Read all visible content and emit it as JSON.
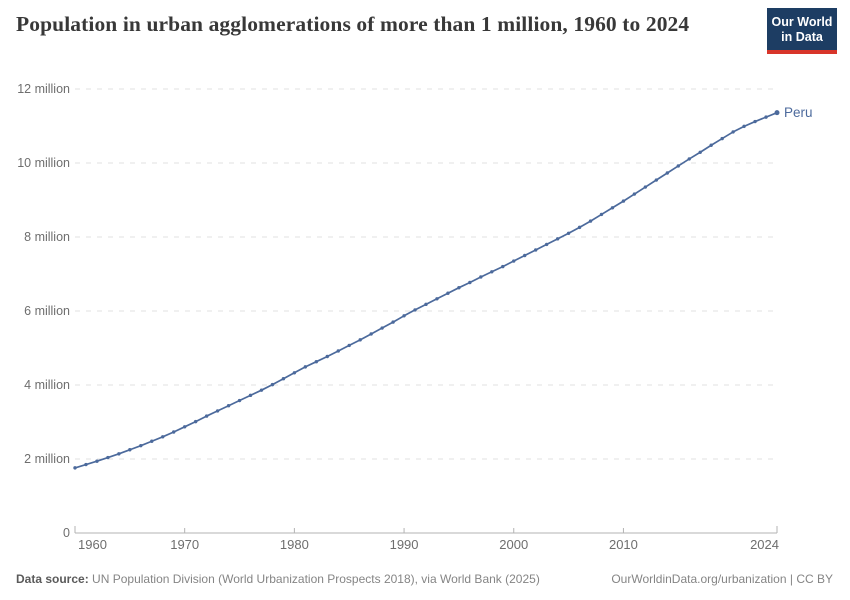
{
  "header": {
    "title": "Population in urban agglomerations of more than 1 million, 1960 to 2024",
    "logo": {
      "line1": "Our World",
      "line2": "in Data"
    }
  },
  "colors": {
    "line": "#4c6a9c",
    "entity_label": "#4c6a9c",
    "logo_background": "#1d3d63",
    "logo_stripe": "#d8352a",
    "gridline": "#e2e2e2",
    "axis": "#b3b3b3",
    "tick_text": "#6e6e6e"
  },
  "chart_data": {
    "type": "line",
    "title": "Population in urban agglomerations of more than 1 million, 1960 to 2024",
    "entity": "Peru",
    "unit": "million people",
    "xlim": [
      1960,
      2024
    ],
    "ylim": [
      0,
      12
    ],
    "xticks": [
      1960,
      1970,
      1980,
      1990,
      2000,
      2010,
      2024
    ],
    "yticks": [
      {
        "value": 0,
        "label": "0"
      },
      {
        "value": 2,
        "label": "2 million"
      },
      {
        "value": 4,
        "label": "4 million"
      },
      {
        "value": 6,
        "label": "6 million"
      },
      {
        "value": 8,
        "label": "8 million"
      },
      {
        "value": 10,
        "label": "10 million"
      },
      {
        "value": 12,
        "label": "12 million"
      }
    ],
    "grid": "horizontal-dashed",
    "legend_position": "end-of-line-label",
    "marker": "dot-per-year",
    "x": [
      1960,
      1961,
      1962,
      1963,
      1964,
      1965,
      1966,
      1967,
      1968,
      1969,
      1970,
      1971,
      1972,
      1973,
      1974,
      1975,
      1976,
      1977,
      1978,
      1979,
      1980,
      1981,
      1982,
      1983,
      1984,
      1985,
      1986,
      1987,
      1988,
      1989,
      1990,
      1991,
      1992,
      1993,
      1994,
      1995,
      1996,
      1997,
      1998,
      1999,
      2000,
      2001,
      2002,
      2003,
      2004,
      2005,
      2006,
      2007,
      2008,
      2009,
      2010,
      2011,
      2012,
      2013,
      2014,
      2015,
      2016,
      2017,
      2018,
      2019,
      2020,
      2021,
      2022,
      2023,
      2024
    ],
    "series": [
      {
        "name": "Peru",
        "color": "#4c6a9c",
        "values": [
          1.76,
          1.85,
          1.94,
          2.04,
          2.14,
          2.25,
          2.36,
          2.48,
          2.6,
          2.73,
          2.87,
          3.01,
          3.16,
          3.3,
          3.44,
          3.58,
          3.72,
          3.86,
          4.01,
          4.17,
          4.33,
          4.49,
          4.63,
          4.77,
          4.92,
          5.07,
          5.22,
          5.38,
          5.54,
          5.7,
          5.87,
          6.03,
          6.18,
          6.33,
          6.48,
          6.63,
          6.77,
          6.92,
          7.06,
          7.2,
          7.35,
          7.5,
          7.65,
          7.8,
          7.95,
          8.1,
          8.26,
          8.43,
          8.61,
          8.79,
          8.97,
          9.16,
          9.35,
          9.54,
          9.73,
          9.92,
          10.11,
          10.29,
          10.48,
          10.66,
          10.84,
          10.99,
          11.12,
          11.24,
          11.36
        ]
      }
    ]
  },
  "footer": {
    "datasource_label": "Data source:",
    "datasource_text": "UN Population Division (World Urbanization Prospects 2018), via World Bank (2025)",
    "link_text": "OurWorldinData.org/urbanization | CC BY"
  }
}
